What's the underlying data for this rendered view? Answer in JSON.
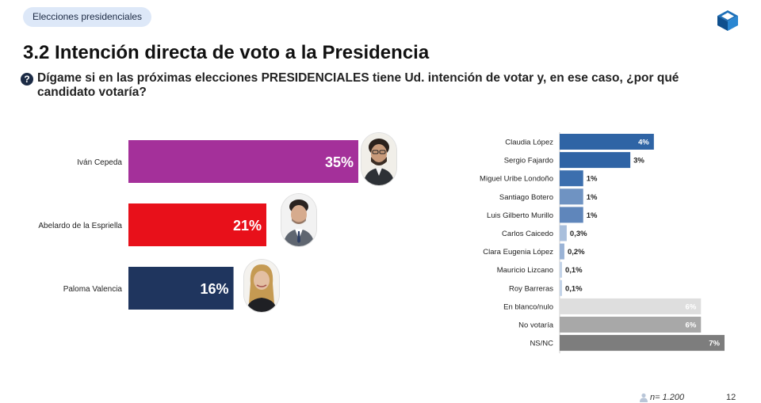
{
  "header": {
    "tag": "Elecciones presidenciales",
    "title": "3.2 Intención directa de voto a la Presidencia",
    "question": "Dígame si en las próximas elecciones PRESIDENCIALES tiene Ud. intención de votar y, en ese caso, ¿por qué candidato votaría?"
  },
  "footer": {
    "sample": "n= 1.200",
    "page": "12"
  },
  "chart_data": [
    {
      "type": "bar",
      "orientation": "horizontal",
      "categories": [
        "Iván Cepeda",
        "Abelardo de la Espriella",
        "Paloma Valencia"
      ],
      "values": [
        35,
        21,
        16
      ],
      "labels": [
        "35%",
        "21%",
        "16%"
      ],
      "colors": [
        "#a4309a",
        "#e8101a",
        "#1f355e"
      ],
      "xlim": [
        0,
        35
      ]
    },
    {
      "type": "bar",
      "orientation": "horizontal",
      "categories": [
        "Claudia López",
        "Sergio Fajardo",
        "Miguel Uribe Londoño",
        "Santiago Botero",
        "Luis Gilberto Murillo",
        "Carlos Caicedo",
        "Clara Eugenia López",
        "Mauricio Lizcano",
        "Roy Barreras",
        "En blanco/nulo",
        "No votaría",
        "NS/NC"
      ],
      "values": [
        4,
        3,
        1,
        1,
        1,
        0.3,
        0.2,
        0.1,
        0.1,
        6,
        6,
        7
      ],
      "labels": [
        "4%",
        "3%",
        "1%",
        "1%",
        "1%",
        "0,3%",
        "0,2%",
        "0,1%",
        "0,1%",
        "6%",
        "6%",
        "7%"
      ],
      "colors": [
        "#2f64a5",
        "#2f64a5",
        "#3c6fae",
        "#6f93c2",
        "#5f86bb",
        "#a9bfdc",
        "#9ab3d6",
        "#c3d3e8",
        "#c3d3e8",
        "#dedede",
        "#a8a8a8",
        "#7d7d7d"
      ],
      "xlim": [
        0,
        7
      ]
    }
  ]
}
